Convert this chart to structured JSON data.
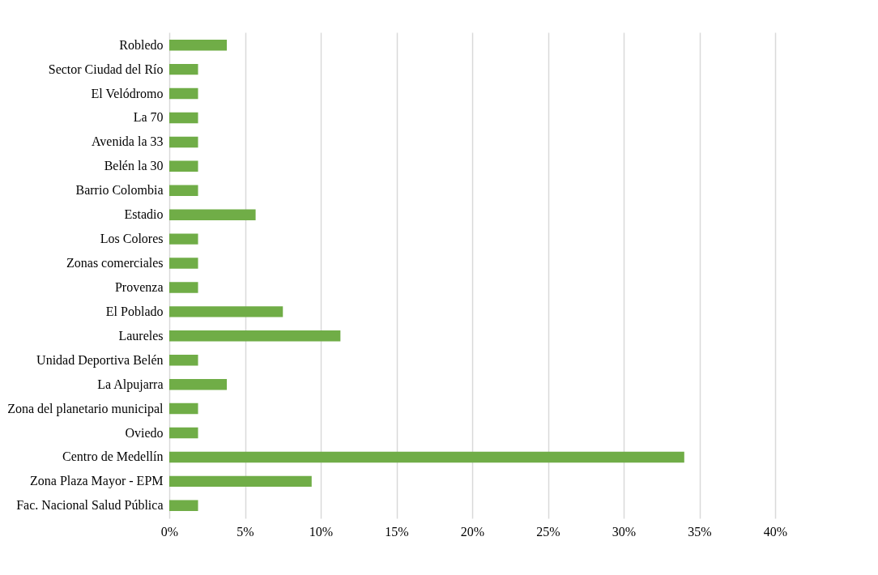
{
  "chart_data": {
    "type": "bar",
    "orientation": "horizontal",
    "categories": [
      "Robledo",
      "Sector Ciudad del Río",
      "El Velódromo",
      "La 70",
      "Avenida la 33",
      "Belén la 30",
      "Barrio Colombia",
      "Estadio",
      "Los Colores",
      "Zonas comerciales",
      "Provenza",
      "El Poblado",
      "Laureles",
      "Unidad Deportiva Belén",
      "La Alpujarra",
      "Zona del planetario municipal",
      "Oviedo",
      "Centro de Medellín",
      "Zona Plaza Mayor - EPM",
      "Fac. Nacional Salud Pública"
    ],
    "values": [
      3.8,
      1.9,
      1.9,
      1.9,
      1.9,
      1.9,
      1.9,
      5.7,
      1.9,
      1.9,
      1.9,
      7.5,
      11.3,
      1.9,
      3.8,
      1.9,
      1.9,
      34.0,
      9.4,
      1.9
    ],
    "color": "#70ad47",
    "xlim": [
      0,
      40
    ],
    "xticks": [
      {
        "value": 0,
        "label": "0%"
      },
      {
        "value": 5,
        "label": "5%"
      },
      {
        "value": 10,
        "label": "10%"
      },
      {
        "value": 15,
        "label": "15%"
      },
      {
        "value": 20,
        "label": "20%"
      },
      {
        "value": 25,
        "label": "25%"
      },
      {
        "value": 30,
        "label": "30%"
      },
      {
        "value": 35,
        "label": "35%"
      },
      {
        "value": 40,
        "label": "40%"
      }
    ],
    "grid": "x"
  }
}
